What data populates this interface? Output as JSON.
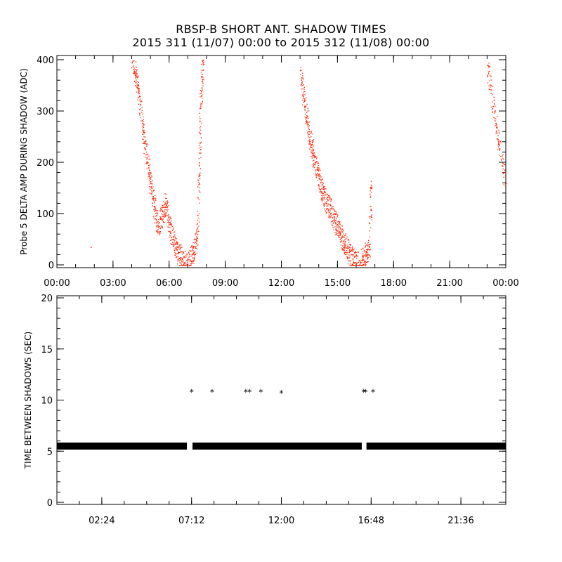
{
  "title": "RBSP-B SHORT ANT. SHADOW TIMES",
  "subtitle": "2015 311 (11/07) 00:00 to 2015 312 (11/08) 00:00",
  "colors": {
    "amplitude_points": "#ff2200",
    "interval_points": "#000000",
    "axes": "#000000"
  },
  "chart_data": [
    {
      "type": "scatter",
      "ylabel": "Probe 5 DELTA AMP DURING SHADOW (ADC)",
      "xlabel": "",
      "xlim": [
        "00:00",
        "24:00"
      ],
      "ylim": [
        0,
        400
      ],
      "x_ticks": [
        "00:00",
        "03:00",
        "06:00",
        "09:00",
        "12:00",
        "15:00",
        "18:00",
        "21:00",
        "00:00"
      ],
      "y_ticks": [
        "0",
        "100",
        "200",
        "300",
        "400"
      ],
      "series": [
        {
          "color": "#ff2200",
          "x_hours": [
            1.8,
            4.0,
            4.2,
            4.4,
            4.6,
            4.8,
            5.0,
            5.2,
            5.4,
            5.6,
            5.8,
            6.0,
            6.2,
            6.4,
            6.6,
            6.8,
            7.1,
            7.3,
            7.5,
            7.6,
            7.7,
            7.8,
            13.0,
            13.2,
            13.4,
            13.6,
            13.8,
            14.0,
            14.2,
            14.4,
            14.6,
            14.8,
            15.0,
            15.2,
            15.4,
            15.6,
            15.8,
            16.0,
            16.3,
            16.5,
            16.7,
            16.8,
            23.0,
            23.3,
            23.6,
            24.0
          ],
          "y_values": [
            35,
            395,
            370,
            330,
            260,
            210,
            160,
            115,
            75,
            95,
            120,
            80,
            50,
            30,
            15,
            5,
            10,
            25,
            60,
            200,
            330,
            400,
            380,
            320,
            270,
            230,
            200,
            170,
            140,
            120,
            110,
            90,
            75,
            55,
            40,
            25,
            12,
            4,
            10,
            20,
            30,
            150,
            390,
            310,
            240,
            160
          ]
        }
      ]
    },
    {
      "type": "scatter",
      "ylabel": "TIME BETWEEN SHADOWS (SEC)",
      "xlabel": "",
      "xlim": [
        "00:00",
        "24:00"
      ],
      "ylim": [
        0,
        20
      ],
      "x_ticks": [
        "02:24",
        "07:12",
        "12:00",
        "16:48",
        "21:36"
      ],
      "y_ticks": [
        "0",
        "5",
        "10",
        "15",
        "20"
      ],
      "series": [
        {
          "color": "#000000",
          "description_free": true,
          "baseline_value": 5.5,
          "baseline_ranges_hours": [
            [
              0.0,
              6.95
            ],
            [
              7.25,
              16.3
            ],
            [
              16.55,
              24.0
            ]
          ],
          "outlier_x_hours": [
            7.2,
            8.3,
            10.1,
            10.3,
            10.9,
            12.0,
            16.4,
            16.5,
            16.9
          ],
          "outlier_y_values": [
            10.9,
            10.9,
            10.9,
            10.9,
            10.9,
            10.8,
            10.9,
            10.9,
            10.9
          ]
        }
      ]
    }
  ]
}
